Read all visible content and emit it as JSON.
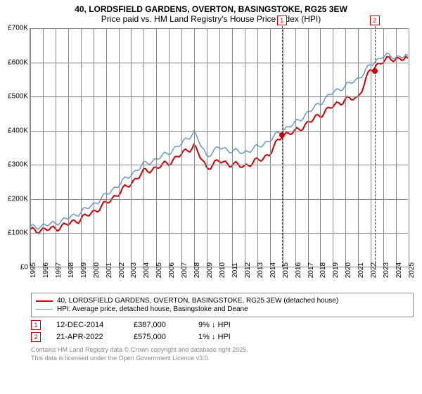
{
  "title": {
    "line1": "40, LORDSFIELD GARDENS, OVERTON, BASINGSTOKE, RG25 3EW",
    "line2": "Price paid vs. HM Land Registry's House Price Index (HPI)",
    "fontsize": 12
  },
  "chart": {
    "type": "line",
    "background_color": "#ffffff",
    "grid_color": "#888888",
    "ylim": [
      0,
      700000
    ],
    "ytick_step": 100000,
    "y_labels": [
      "£0",
      "£100K",
      "£200K",
      "£300K",
      "£400K",
      "£500K",
      "£600K",
      "£700K"
    ],
    "x_years": [
      1995,
      1996,
      1997,
      1998,
      1999,
      2000,
      2001,
      2002,
      2003,
      2004,
      2005,
      2006,
      2007,
      2008,
      2009,
      2010,
      2011,
      2012,
      2013,
      2014,
      2015,
      2016,
      2017,
      2018,
      2019,
      2020,
      2021,
      2022,
      2023,
      2024,
      2025
    ],
    "series": [
      {
        "name": "40, LORDSFIELD GARDENS, OVERTON, BASINGSTOKE, RG25 3EW (detached house)",
        "color": "#cc0000",
        "line_width": 2,
        "values": [
          105,
          108,
          112,
          125,
          140,
          160,
          185,
          215,
          245,
          278,
          290,
          305,
          330,
          355,
          290,
          310,
          300,
          295,
          310,
          330,
          387,
          395,
          420,
          445,
          470,
          490,
          495,
          575,
          605,
          610,
          612
        ]
      },
      {
        "name": "HPI: Average price, detached house, Basingstoke and Deane",
        "color": "#6699cc",
        "line_width": 1.5,
        "values": [
          115,
          120,
          128,
          142,
          160,
          182,
          210,
          240,
          270,
          300,
          315,
          335,
          360,
          395,
          325,
          350,
          340,
          335,
          350,
          370,
          400,
          420,
          450,
          480,
          510,
          530,
          550,
          590,
          620,
          615,
          620
        ]
      }
    ],
    "markers": [
      {
        "id": "1",
        "color": "#cc0000",
        "year": 2014.95,
        "value": 387000
      },
      {
        "id": "2",
        "color": "#cc0000",
        "year": 2022.3,
        "value": 575000
      }
    ]
  },
  "legend": {
    "items": [
      {
        "color": "#cc0000",
        "width": 2,
        "label": "40, LORDSFIELD GARDENS, OVERTON, BASINGSTOKE, RG25 3EW (detached house)"
      },
      {
        "color": "#6699cc",
        "width": 1.5,
        "label": "HPI: Average price, detached house, Basingstoke and Deane"
      }
    ]
  },
  "transactions": [
    {
      "id": "1",
      "color": "#cc0000",
      "date": "12-DEC-2014",
      "price": "£387,000",
      "pct": "9% ↓ HPI"
    },
    {
      "id": "2",
      "color": "#cc0000",
      "date": "21-APR-2022",
      "price": "£575,000",
      "pct": "1% ↓ HPI"
    }
  ],
  "footer": {
    "line1": "Contains HM Land Registry data © Crown copyright and database right 2025.",
    "line2": "This data is licensed under the Open Government Licence v3.0."
  }
}
